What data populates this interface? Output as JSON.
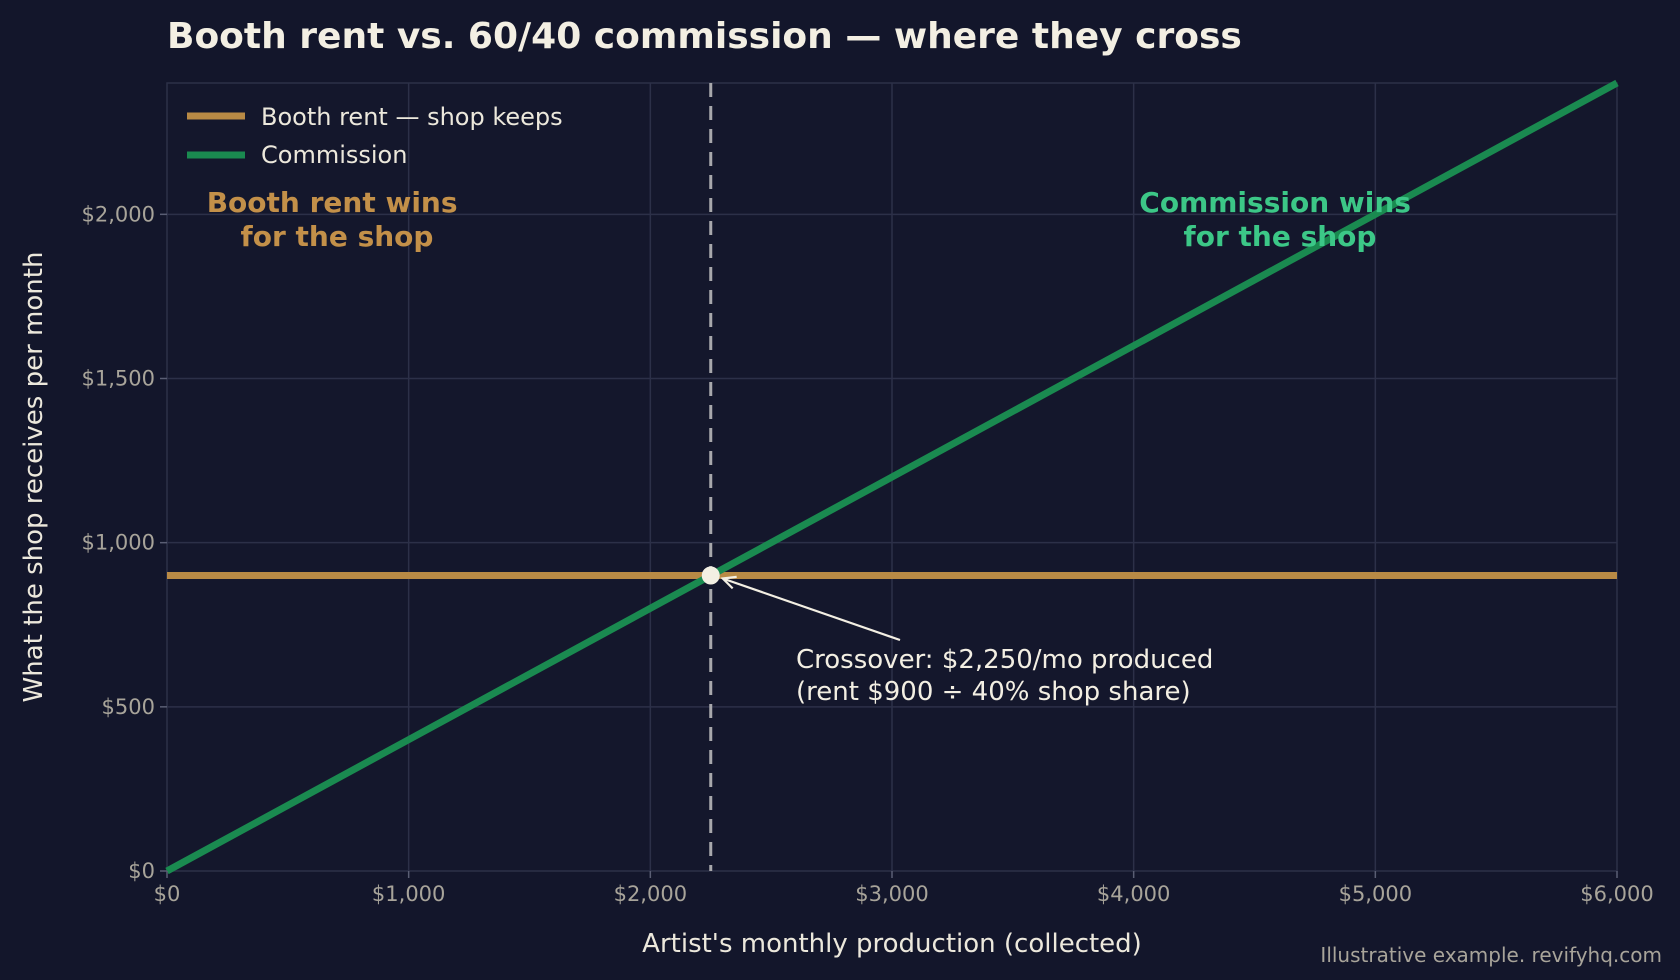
{
  "chart_data": {
    "type": "line",
    "title": "Booth rent vs. 60/40 commission — where they cross",
    "xlabel": "Artist's monthly production (collected)",
    "ylabel": "What the shop receives per month",
    "xlim": [
      0,
      6000
    ],
    "ylim": [
      0,
      2400
    ],
    "x_ticks": [
      0,
      1000,
      2000,
      3000,
      4000,
      5000,
      6000
    ],
    "x_tick_labels": [
      "$0",
      "$1,000",
      "$2,000",
      "$3,000",
      "$4,000",
      "$5,000",
      "$6,000"
    ],
    "y_ticks": [
      0,
      500,
      1000,
      1500,
      2000
    ],
    "y_tick_labels": [
      "$0",
      "$500",
      "$1,000",
      "$1,500",
      "$2,000"
    ],
    "grid": true,
    "legend_position": "top-left",
    "series": [
      {
        "name": "Booth rent — shop keeps",
        "color": "#b98a45",
        "x": [
          0,
          6000
        ],
        "y": [
          900,
          900
        ]
      },
      {
        "name": "Commission",
        "color": "#1a8a50",
        "x": [
          0,
          6000
        ],
        "y": [
          0,
          2400
        ]
      }
    ],
    "crossover": {
      "x": 2250,
      "y": 900,
      "label_lines": [
        "Crossover: $2,250/mo produced",
        "(rent $900 ÷ 40% shop share)"
      ]
    },
    "region_labels": [
      {
        "lines": [
          "Booth rent wins",
          "for the shop"
        ],
        "color": "#c39049"
      },
      {
        "lines": [
          "Commission wins",
          "for the shop"
        ],
        "color": "#3cc787"
      }
    ],
    "footer": "Illustrative example. revifyhq.com"
  }
}
